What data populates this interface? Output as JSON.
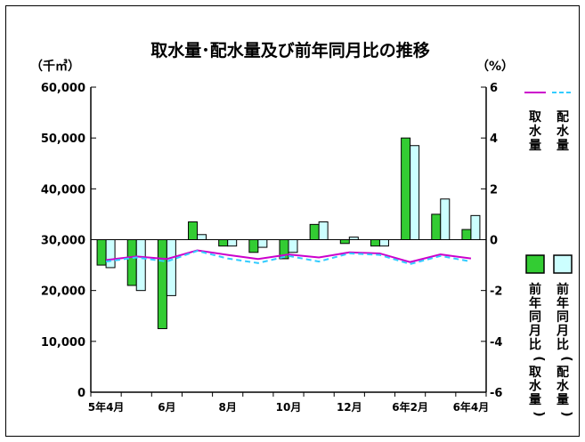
{
  "chart_data": {
    "type": "bar",
    "title": "取水量･配水量及び前年同月比の推移",
    "left_axis": {
      "unit_label": "（千㎥）",
      "ticks": [
        0,
        10000,
        20000,
        30000,
        40000,
        50000,
        60000
      ],
      "tick_labels": [
        "0",
        "10,000",
        "20,000",
        "30,000",
        "40,000",
        "50,000",
        "60,000"
      ],
      "range": [
        0,
        60000
      ]
    },
    "right_axis": {
      "unit_label": "（%）",
      "ticks": [
        -6,
        -4,
        -2,
        0,
        2,
        4,
        6
      ],
      "tick_labels": [
        "-6",
        "-4",
        "-2",
        "0",
        "2",
        "4",
        "6"
      ],
      "range": [
        -6,
        6
      ]
    },
    "x_labels": [
      {
        "index": 0,
        "label": "5年4月"
      },
      {
        "index": 2,
        "label": "6月"
      },
      {
        "index": 4,
        "label": "8月"
      },
      {
        "index": 6,
        "label": "10月"
      },
      {
        "index": 8,
        "label": "12月"
      },
      {
        "index": 10,
        "label": "6年2月"
      },
      {
        "index": 12,
        "label": "6年4月"
      }
    ],
    "months_count": 13,
    "series": [
      {
        "name": "取水量",
        "kind": "line",
        "axis": "left",
        "color": "#cc00cc",
        "values": [
          26000,
          26700,
          26200,
          27900,
          27000,
          26200,
          27100,
          26500,
          27500,
          27300,
          25600,
          27100,
          26300
        ]
      },
      {
        "name": "配水量",
        "kind": "line",
        "axis": "left",
        "color": "#33ccff",
        "dashed": true,
        "values": [
          25700,
          26500,
          25700,
          27800,
          26300,
          25400,
          26800,
          25700,
          27300,
          27000,
          25200,
          26800,
          25700
        ]
      },
      {
        "name": "前年同月比（取水量）",
        "kind": "bar",
        "axis": "right",
        "color": "#33cc33",
        "values": [
          -1.0,
          -1.8,
          -3.5,
          0.7,
          -0.25,
          -0.5,
          -0.75,
          0.6,
          -0.15,
          -0.25,
          4.0,
          1.0,
          0.4
        ]
      },
      {
        "name": "前年同月比（配水量）",
        "kind": "bar",
        "axis": "right",
        "color": "#ccffff",
        "values": [
          -1.1,
          -2.0,
          -2.2,
          0.2,
          -0.25,
          -0.3,
          -0.5,
          0.7,
          0.1,
          -0.25,
          3.7,
          1.6,
          0.95
        ]
      }
    ],
    "legend": {
      "line_items": [
        {
          "series": 0,
          "label": "取水量"
        },
        {
          "series": 1,
          "label": "配水量"
        }
      ],
      "bar_items": [
        {
          "series": 2,
          "label": "前年同月比（取水量）"
        },
        {
          "series": 3,
          "label": "前年同月比（配水量）"
        }
      ],
      "position": "right"
    },
    "grid": false
  }
}
